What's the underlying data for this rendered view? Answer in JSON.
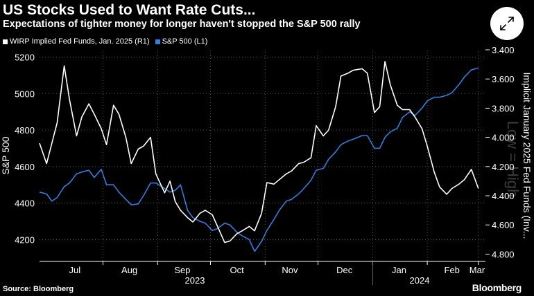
{
  "header": {
    "title": "US Stocks Used to Want Rate Cuts...",
    "subtitle": "Expectations of tighter money for longer haven't stopped the S&P 500 rally"
  },
  "footer": {
    "source": "Source: Bloomberg",
    "brand": "Bloomberg"
  },
  "colors": {
    "background": "#000000",
    "wirp": "#ffffff",
    "spx": "#2f7fe0",
    "grid": "#555555"
  },
  "icons": {
    "expand": "expand-arrows-icon"
  },
  "chart_data": {
    "type": "line",
    "legend_placement": "top-left",
    "grid": true,
    "x_labels": [
      "Jul",
      "Aug",
      "Sep",
      "Oct",
      "Nov",
      "Dec",
      "Jan",
      "Feb",
      "Mar"
    ],
    "x_years": [
      "2023",
      "2024"
    ],
    "y_left": {
      "label": "S&P 500",
      "ticks": [
        "4200",
        "4400",
        "4600",
        "4800",
        "5000",
        "5200"
      ],
      "range": [
        4080,
        5240
      ]
    },
    "y_right": {
      "label": "Implicit January 2025 Fed Funds (Inv...",
      "inverted": true,
      "ticks": [
        "3.400",
        "3.600",
        "3.800",
        "4.000",
        "4.200",
        "4.400",
        "4.600",
        "4.800"
      ],
      "range": [
        3.4,
        4.85
      ]
    },
    "watermark": "Low = High",
    "series": [
      {
        "name": "WIRP Implied Fed Funds, Jan. 2025 (R1)",
        "axis": "right",
        "x": [
          "2023-06-26",
          "2023-06-30",
          "2023-07-03",
          "2023-07-06",
          "2023-07-10",
          "2023-07-13",
          "2023-07-17",
          "2023-07-20",
          "2023-07-24",
          "2023-07-27",
          "2023-07-31",
          "2023-08-03",
          "2023-08-07",
          "2023-08-10",
          "2023-08-14",
          "2023-08-17",
          "2023-08-21",
          "2023-08-24",
          "2023-08-28",
          "2023-08-31",
          "2023-09-05",
          "2023-09-08",
          "2023-09-11",
          "2023-09-14",
          "2023-09-18",
          "2023-09-21",
          "2023-09-25",
          "2023-09-28",
          "2023-10-02",
          "2023-10-05",
          "2023-10-09",
          "2023-10-12",
          "2023-10-16",
          "2023-10-19",
          "2023-10-23",
          "2023-10-26",
          "2023-10-30",
          "2023-11-02",
          "2023-11-06",
          "2023-11-09",
          "2023-11-13",
          "2023-11-16",
          "2023-11-20",
          "2023-11-23",
          "2023-11-27",
          "2023-11-30",
          "2023-12-04",
          "2023-12-07",
          "2023-12-11",
          "2023-12-14",
          "2023-12-18",
          "2023-12-21",
          "2023-12-26",
          "2023-12-29",
          "2024-01-02",
          "2024-01-05",
          "2024-01-08",
          "2024-01-11",
          "2024-01-15",
          "2024-01-18",
          "2024-01-22",
          "2024-01-25",
          "2024-01-29",
          "2024-02-01",
          "2024-02-05",
          "2024-02-08",
          "2024-02-12",
          "2024-02-15",
          "2024-02-19",
          "2024-02-22",
          "2024-02-26",
          "2024-03-01"
        ],
        "values": [
          4.04,
          4.18,
          4.04,
          3.9,
          3.51,
          3.74,
          3.99,
          3.86,
          3.77,
          3.84,
          3.94,
          4.05,
          3.78,
          3.84,
          4.0,
          4.18,
          4.08,
          4.06,
          4.0,
          4.25,
          4.38,
          4.3,
          4.44,
          4.5,
          4.55,
          4.58,
          4.52,
          4.5,
          4.53,
          4.61,
          4.72,
          4.71,
          4.66,
          4.64,
          4.61,
          4.64,
          4.52,
          4.31,
          4.32,
          4.29,
          4.25,
          4.23,
          4.18,
          4.17,
          4.14,
          3.92,
          3.99,
          3.95,
          3.79,
          3.58,
          3.56,
          3.54,
          3.53,
          3.56,
          3.83,
          3.79,
          3.48,
          3.64,
          3.78,
          3.81,
          3.81,
          3.86,
          3.94,
          4.06,
          4.24,
          4.34,
          4.39,
          4.35,
          4.32,
          4.29,
          4.22,
          4.35
        ]
      },
      {
        "name": "S&P 500 (L1)",
        "axis": "left",
        "x": [
          "2023-06-26",
          "2023-06-30",
          "2023-07-03",
          "2023-07-06",
          "2023-07-10",
          "2023-07-13",
          "2023-07-17",
          "2023-07-20",
          "2023-07-24",
          "2023-07-27",
          "2023-07-31",
          "2023-08-03",
          "2023-08-07",
          "2023-08-10",
          "2023-08-14",
          "2023-08-17",
          "2023-08-21",
          "2023-08-24",
          "2023-08-28",
          "2023-08-31",
          "2023-09-05",
          "2023-09-08",
          "2023-09-11",
          "2023-09-14",
          "2023-09-18",
          "2023-09-21",
          "2023-09-25",
          "2023-09-28",
          "2023-10-02",
          "2023-10-05",
          "2023-10-09",
          "2023-10-12",
          "2023-10-16",
          "2023-10-19",
          "2023-10-23",
          "2023-10-26",
          "2023-10-30",
          "2023-11-02",
          "2023-11-06",
          "2023-11-09",
          "2023-11-13",
          "2023-11-16",
          "2023-11-20",
          "2023-11-23",
          "2023-11-27",
          "2023-11-30",
          "2023-12-04",
          "2023-12-07",
          "2023-12-11",
          "2023-12-14",
          "2023-12-18",
          "2023-12-21",
          "2023-12-26",
          "2023-12-29",
          "2024-01-02",
          "2024-01-05",
          "2024-01-08",
          "2024-01-11",
          "2024-01-15",
          "2024-01-18",
          "2024-01-22",
          "2024-01-25",
          "2024-01-29",
          "2024-02-01",
          "2024-02-05",
          "2024-02-08",
          "2024-02-12",
          "2024-02-15",
          "2024-02-19",
          "2024-02-22",
          "2024-02-26",
          "2024-03-01"
        ],
        "values": [
          4460,
          4450,
          4410,
          4430,
          4490,
          4510,
          4560,
          4570,
          4580,
          4540,
          4585,
          4500,
          4500,
          4460,
          4420,
          4390,
          4395,
          4440,
          4510,
          4510,
          4480,
          4460,
          4470,
          4500,
          4360,
          4320,
          4300,
          4290,
          4250,
          4260,
          4290,
          4280,
          4240,
          4220,
          4200,
          4135,
          4190,
          4250,
          4310,
          4360,
          4410,
          4420,
          4450,
          4480,
          4525,
          4580,
          4590,
          4640,
          4680,
          4720,
          4740,
          4750,
          4770,
          4770,
          4700,
          4700,
          4760,
          4790,
          4810,
          4870,
          4900,
          4880,
          4920,
          4960,
          4980,
          4980,
          4990,
          5005,
          5050,
          5090,
          5130,
          5140
        ]
      }
    ]
  }
}
